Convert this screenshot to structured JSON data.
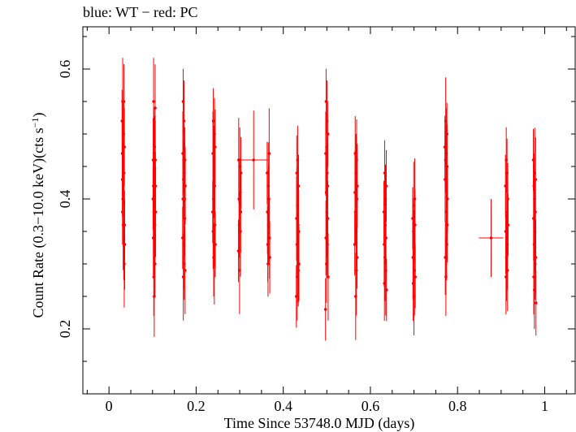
{
  "chart_data": {
    "type": "scatter",
    "title": "blue: WT − red: PC",
    "xlabel": "Time Since 53748.0 MJD (days)",
    "ylabel_main": "Count Rate (0.3−10.0 keV)(cts s",
    "ylabel_sup": "−1",
    "ylabel_close": ")",
    "xlim": [
      -0.06,
      1.07
    ],
    "ylim": [
      0.1,
      0.665
    ],
    "x_ticks": [
      0,
      0.2,
      0.4,
      0.6,
      0.8,
      1
    ],
    "x_tick_labels": [
      "0",
      "0.2",
      "0.4",
      "0.6",
      "0.8",
      "1"
    ],
    "y_ticks": [
      0.2,
      0.4,
      0.6
    ],
    "y_tick_labels": [
      "0.2",
      "0.4",
      "0.6"
    ],
    "grid": false,
    "series": [
      {
        "color": "#ff0000",
        "clusters": [
          {
            "x": 0.033,
            "xerr": 0.002,
            "values": [
              0.52,
              0.47,
              0.43,
              0.38,
              0.55,
              0.4,
              0.47,
              0.36,
              0.41,
              0.43,
              0.5,
              0.34,
              0.55,
              0.44,
              0.3,
              0.48,
              0.36,
              0.33
            ],
            "err": 0.06
          },
          {
            "x": 0.104,
            "xerr": 0.002,
            "values": [
              0.4,
              0.46,
              0.34,
              0.42,
              0.55,
              0.28,
              0.38,
              0.47,
              0.25,
              0.34,
              0.48,
              0.4,
              0.36,
              0.3,
              0.54,
              0.46,
              0.42,
              0.38
            ],
            "err": 0.06
          },
          {
            "x": 0.172,
            "xerr": 0.002,
            "values": [
              0.34,
              0.47,
              0.4,
              0.55,
              0.28,
              0.43,
              0.46,
              0.33,
              0.52,
              0.3,
              0.44,
              0.4,
              0.37,
              0.46,
              0.29,
              0.42
            ],
            "err": 0.06
          },
          {
            "x": 0.241,
            "xerr": 0.002,
            "values": [
              0.38,
              0.47,
              0.35,
              0.52,
              0.4,
              0.31,
              0.46,
              0.44,
              0.3,
              0.5,
              0.42,
              0.36,
              0.48,
              0.33
            ],
            "err": 0.06
          },
          {
            "x": 0.3,
            "xerr": 0.002,
            "values": [
              0.32,
              0.46,
              0.4,
              0.36,
              0.29,
              0.45,
              0.41,
              0.35,
              0.38,
              0.44
            ],
            "err": 0.06
          },
          {
            "x": 0.332,
            "xerr": 0.033,
            "values": [
              0.46
            ],
            "err": 0.095
          },
          {
            "x": 0.366,
            "xerr": 0.002,
            "values": [
              0.44,
              0.38,
              0.33,
              0.3,
              0.42,
              0.36,
              0.4,
              0.47,
              0.34,
              0.31
            ],
            "err": 0.06
          },
          {
            "x": 0.433,
            "xerr": 0.002,
            "values": [
              0.25,
              0.37,
              0.44,
              0.33,
              0.28,
              0.39,
              0.46,
              0.31,
              0.36,
              0.29,
              0.42,
              0.35,
              0.3
            ],
            "err": 0.06
          },
          {
            "x": 0.5,
            "xerr": 0.002,
            "values": [
              0.23,
              0.47,
              0.34,
              0.55,
              0.41,
              0.3,
              0.48,
              0.38,
              0.52,
              0.44,
              0.33,
              0.42,
              0.37,
              0.5,
              0.28
            ],
            "err": 0.06
          },
          {
            "x": 0.567,
            "xerr": 0.002,
            "values": [
              0.33,
              0.41,
              0.47,
              0.38,
              0.25,
              0.44,
              0.35,
              0.29,
              0.46,
              0.4,
              0.31,
              0.42
            ],
            "err": 0.06
          },
          {
            "x": 0.634,
            "xerr": 0.002,
            "values": [
              0.38,
              0.33,
              0.27,
              0.44,
              0.31,
              0.36,
              0.4,
              0.29,
              0.34,
              0.42,
              0.26
            ],
            "err": 0.06
          },
          {
            "x": 0.7,
            "xerr": 0.002,
            "values": [
              0.37,
              0.31,
              0.27,
              0.35,
              0.39,
              0.25,
              0.33,
              0.29,
              0.4,
              0.36,
              0.28
            ],
            "err": 0.06
          },
          {
            "x": 0.774,
            "xerr": 0.002,
            "values": [
              0.48,
              0.43,
              0.31,
              0.46,
              0.52,
              0.28,
              0.38,
              0.47,
              0.42,
              0.33,
              0.5,
              0.45,
              0.36,
              0.4
            ],
            "err": 0.06
          },
          {
            "x": 0.877,
            "xerr": 0.028,
            "values": [
              0.34
            ],
            "err": 0.075
          },
          {
            "x": 0.913,
            "xerr": 0.002,
            "values": [
              0.42,
              0.35,
              0.28,
              0.46,
              0.31,
              0.38,
              0.44,
              0.33,
              0.29,
              0.4,
              0.36
            ],
            "err": 0.06
          },
          {
            "x": 0.977,
            "xerr": 0.002,
            "values": [
              0.46,
              0.37,
              0.28,
              0.42,
              0.33,
              0.26,
              0.4,
              0.44,
              0.35,
              0.3,
              0.38,
              0.43,
              0.31,
              0.24
            ],
            "err": 0.06
          }
        ]
      }
    ]
  }
}
